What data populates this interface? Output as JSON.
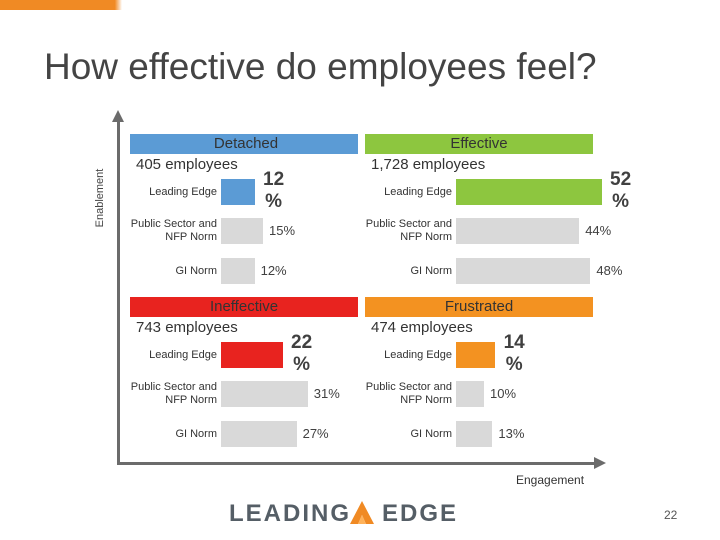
{
  "title": "How effective do employees feel?",
  "colors": {
    "accent": "#f08a24",
    "detached": "#5b9bd5",
    "effective": "#8dc63f",
    "ineffective": "#e8231f",
    "frustrated": "#f39221",
    "norm_bar": "#d9d9d9",
    "axis": "#6b6b6b"
  },
  "axes": {
    "y_label": "Enablement",
    "x_label": "Engagement"
  },
  "footer": {
    "logo_left": "LEADING",
    "logo_right": "EDGE",
    "page_number": "22"
  },
  "chart_data": {
    "type": "bar",
    "title": "How effective do employees feel?",
    "xlabel": "Engagement",
    "ylabel": "Enablement",
    "ylim": [
      0,
      100
    ],
    "categories": [
      "Leading Edge",
      "Public Sector and NFP Norm",
      "GI Norm"
    ],
    "quadrants": [
      {
        "id": "detached",
        "title": "Detached",
        "count": "405 employees",
        "color": "#5b9bd5",
        "rows": [
          {
            "label": "Leading Edge",
            "value": 12,
            "display": "12 %"
          },
          {
            "label": "Public Sector and NFP Norm",
            "value": 15,
            "display": "15%"
          },
          {
            "label": "GI Norm",
            "value": 12,
            "display": "12%"
          }
        ]
      },
      {
        "id": "effective",
        "title": "Effective",
        "count": "1,728 employees",
        "color": "#8dc63f",
        "rows": [
          {
            "label": "Leading Edge",
            "value": 52,
            "display": "52 %"
          },
          {
            "label": "Public Sector and NFP Norm",
            "value": 44,
            "display": "44%"
          },
          {
            "label": "GI Norm",
            "value": 48,
            "display": "48%"
          }
        ]
      },
      {
        "id": "ineffective",
        "title": "Ineffective",
        "count": "743 employees",
        "color": "#e8231f",
        "rows": [
          {
            "label": "Leading Edge",
            "value": 22,
            "display": "22 %"
          },
          {
            "label": "Public Sector and NFP Norm",
            "value": 31,
            "display": "31%"
          },
          {
            "label": "GI Norm",
            "value": 27,
            "display": "27%"
          }
        ]
      },
      {
        "id": "frustrated",
        "title": "Frustrated",
        "count": "474 employees",
        "color": "#f39221",
        "rows": [
          {
            "label": "Leading Edge",
            "value": 14,
            "display": "14 %"
          },
          {
            "label": "Public Sector and NFP Norm",
            "value": 10,
            "display": "10%"
          },
          {
            "label": "GI Norm",
            "value": 13,
            "display": "13%"
          }
        ]
      }
    ]
  }
}
